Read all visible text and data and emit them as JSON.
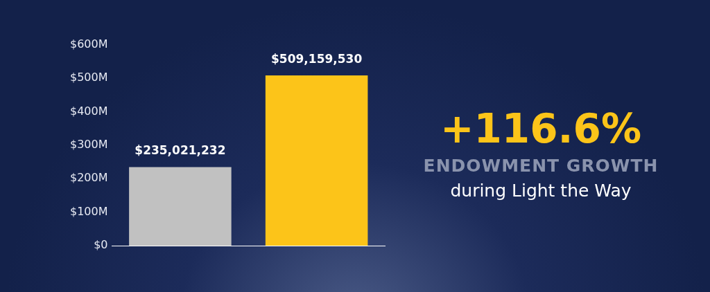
{
  "chart_data": {
    "type": "bar",
    "categories": [
      null,
      null
    ],
    "values": [
      235021232,
      509159530
    ],
    "colors": [
      "#c1c1c1",
      "#fcc419"
    ],
    "value_labels": [
      "$235,021,232",
      "$509,159,530"
    ],
    "ylim": [
      0,
      600000000
    ],
    "yticks": [
      {
        "value": 0,
        "label": "$0"
      },
      {
        "value": 100000000,
        "label": "$100M"
      },
      {
        "value": 200000000,
        "label": "$200M"
      },
      {
        "value": 300000000,
        "label": "$300M"
      },
      {
        "value": 400000000,
        "label": "$400M"
      },
      {
        "value": 500000000,
        "label": "$500M"
      },
      {
        "value": 600000000,
        "label": "$600M"
      }
    ],
    "tick_labels": "y",
    "annotations": [
      "+116.6%",
      "ENDOWMENT GROWTH",
      "during Light the Way"
    ]
  }
}
